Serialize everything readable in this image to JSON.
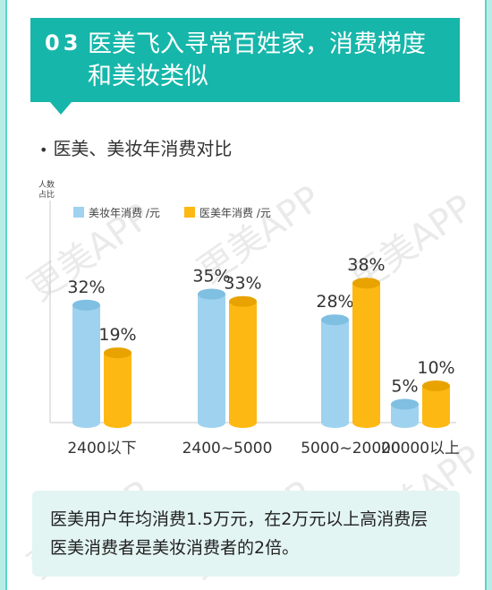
{
  "header": {
    "number": "03",
    "title": "医美飞入寻常百姓家，消费梯度和美妆类似"
  },
  "subtitle": "医美、美妆年消费对比",
  "watermark": "更美APP",
  "note": "医美用户年均消费1.5万元，在2万元以上高消费层医美消费者是美妆消费者的2倍。",
  "colors": {
    "teal": "#17b6aa",
    "blue": "#9fd2ee",
    "orange": "#fdb813"
  },
  "chart_data": {
    "type": "bar",
    "ylabel": "人数占比",
    "categories": [
      "2400以下",
      "2400~5000",
      "5000~20000",
      "20000以上"
    ],
    "series": [
      {
        "name": "美妆年消费 /元",
        "values": [
          32,
          35,
          28,
          5
        ],
        "labels": [
          "32%",
          "35%",
          "28%",
          "5%"
        ]
      },
      {
        "name": "医美年消费 /元",
        "values": [
          19,
          33,
          38,
          10
        ],
        "labels": [
          "19%",
          "33%",
          "38%",
          "10%"
        ]
      }
    ],
    "ylim": [
      0,
      40
    ],
    "legend": "top-left"
  }
}
